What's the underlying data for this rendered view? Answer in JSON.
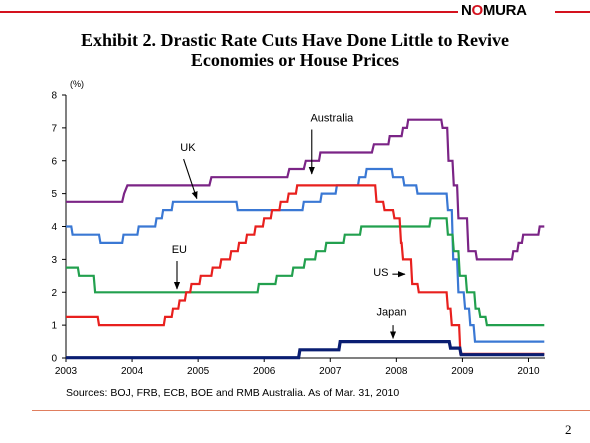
{
  "brand": {
    "logo_left": "N",
    "logo_o": "O",
    "logo_right": "MURA",
    "accent_color": "#d4121e"
  },
  "title_line1": "Exhibit 2.  Drastic Rate Cuts Have Done Little to Revive",
  "title_line2": "Economies or House Prices",
  "source": "Sources: BOJ, FRB, ECB, BOE and RMB Australia. As of  Mar. 31, 2010",
  "page_number": "2",
  "chart_data": {
    "type": "line",
    "step": true,
    "y_unit_label": "(%)",
    "xlim": [
      2003.0,
      2010.25
    ],
    "ylim": [
      0,
      8
    ],
    "x_ticks": [
      2003,
      2004,
      2005,
      2006,
      2007,
      2008,
      2009,
      2010
    ],
    "y_ticks": [
      0,
      1,
      2,
      3,
      4,
      5,
      6,
      7,
      8
    ],
    "grid": false,
    "series": [
      {
        "name": "Australia",
        "color": "#7b2486",
        "points": [
          [
            2003.0,
            4.75
          ],
          [
            2003.85,
            4.75
          ],
          [
            2003.88,
            5.0
          ],
          [
            2003.93,
            5.25
          ],
          [
            2005.17,
            5.25
          ],
          [
            2005.2,
            5.5
          ],
          [
            2006.35,
            5.5
          ],
          [
            2006.38,
            5.75
          ],
          [
            2006.6,
            5.75
          ],
          [
            2006.63,
            6.0
          ],
          [
            2006.83,
            6.0
          ],
          [
            2006.85,
            6.25
          ],
          [
            2007.63,
            6.25
          ],
          [
            2007.66,
            6.5
          ],
          [
            2007.88,
            6.5
          ],
          [
            2007.9,
            6.75
          ],
          [
            2008.08,
            6.75
          ],
          [
            2008.1,
            7.0
          ],
          [
            2008.16,
            7.0
          ],
          [
            2008.18,
            7.25
          ],
          [
            2008.68,
            7.25
          ],
          [
            2008.7,
            7.0
          ],
          [
            2008.77,
            7.0
          ],
          [
            2008.79,
            6.0
          ],
          [
            2008.85,
            6.0
          ],
          [
            2008.87,
            5.25
          ],
          [
            2008.92,
            5.25
          ],
          [
            2008.94,
            4.25
          ],
          [
            2009.07,
            4.25
          ],
          [
            2009.09,
            3.25
          ],
          [
            2009.2,
            3.25
          ],
          [
            2009.22,
            3.0
          ],
          [
            2009.75,
            3.0
          ],
          [
            2009.77,
            3.25
          ],
          [
            2009.83,
            3.25
          ],
          [
            2009.85,
            3.5
          ],
          [
            2009.9,
            3.5
          ],
          [
            2009.92,
            3.75
          ],
          [
            2010.15,
            3.75
          ],
          [
            2010.17,
            4.0
          ],
          [
            2010.24,
            4.0
          ]
        ]
      },
      {
        "name": "UK",
        "color": "#3a78d4",
        "points": [
          [
            2003.0,
            4.0
          ],
          [
            2003.08,
            4.0
          ],
          [
            2003.1,
            3.75
          ],
          [
            2003.5,
            3.75
          ],
          [
            2003.52,
            3.5
          ],
          [
            2003.85,
            3.5
          ],
          [
            2003.87,
            3.75
          ],
          [
            2004.08,
            3.75
          ],
          [
            2004.1,
            4.0
          ],
          [
            2004.35,
            4.0
          ],
          [
            2004.37,
            4.25
          ],
          [
            2004.45,
            4.25
          ],
          [
            2004.47,
            4.5
          ],
          [
            2004.6,
            4.5
          ],
          [
            2004.62,
            4.75
          ],
          [
            2005.58,
            4.75
          ],
          [
            2005.6,
            4.5
          ],
          [
            2006.58,
            4.5
          ],
          [
            2006.6,
            4.75
          ],
          [
            2006.85,
            4.75
          ],
          [
            2006.87,
            5.0
          ],
          [
            2007.08,
            5.0
          ],
          [
            2007.1,
            5.25
          ],
          [
            2007.42,
            5.25
          ],
          [
            2007.44,
            5.5
          ],
          [
            2007.53,
            5.5
          ],
          [
            2007.55,
            5.75
          ],
          [
            2007.93,
            5.75
          ],
          [
            2007.95,
            5.5
          ],
          [
            2008.1,
            5.5
          ],
          [
            2008.12,
            5.25
          ],
          [
            2008.3,
            5.25
          ],
          [
            2008.32,
            5.0
          ],
          [
            2008.76,
            5.0
          ],
          [
            2008.78,
            4.5
          ],
          [
            2008.84,
            4.5
          ],
          [
            2008.86,
            3.0
          ],
          [
            2008.92,
            3.0
          ],
          [
            2008.94,
            2.0
          ],
          [
            2009.02,
            2.0
          ],
          [
            2009.04,
            1.5
          ],
          [
            2009.1,
            1.5
          ],
          [
            2009.12,
            1.0
          ],
          [
            2009.17,
            1.0
          ],
          [
            2009.19,
            0.5
          ],
          [
            2010.24,
            0.5
          ]
        ]
      },
      {
        "name": "EU",
        "color": "#22a04e",
        "points": [
          [
            2003.0,
            2.75
          ],
          [
            2003.18,
            2.75
          ],
          [
            2003.2,
            2.5
          ],
          [
            2003.42,
            2.5
          ],
          [
            2003.44,
            2.0
          ],
          [
            2005.9,
            2.0
          ],
          [
            2005.92,
            2.25
          ],
          [
            2006.17,
            2.25
          ],
          [
            2006.19,
            2.5
          ],
          [
            2006.42,
            2.5
          ],
          [
            2006.44,
            2.75
          ],
          [
            2006.6,
            2.75
          ],
          [
            2006.62,
            3.0
          ],
          [
            2006.77,
            3.0
          ],
          [
            2006.79,
            3.25
          ],
          [
            2006.92,
            3.25
          ],
          [
            2006.94,
            3.5
          ],
          [
            2007.2,
            3.5
          ],
          [
            2007.22,
            3.75
          ],
          [
            2007.45,
            3.75
          ],
          [
            2007.47,
            4.0
          ],
          [
            2008.5,
            4.0
          ],
          [
            2008.52,
            4.25
          ],
          [
            2008.76,
            4.25
          ],
          [
            2008.78,
            3.75
          ],
          [
            2008.85,
            3.75
          ],
          [
            2008.87,
            3.25
          ],
          [
            2008.94,
            3.25
          ],
          [
            2008.96,
            2.5
          ],
          [
            2009.05,
            2.5
          ],
          [
            2009.07,
            2.0
          ],
          [
            2009.18,
            2.0
          ],
          [
            2009.2,
            1.5
          ],
          [
            2009.25,
            1.5
          ],
          [
            2009.27,
            1.25
          ],
          [
            2009.35,
            1.25
          ],
          [
            2009.37,
            1.0
          ],
          [
            2010.24,
            1.0
          ]
        ]
      },
      {
        "name": "US",
        "color": "#e8201e",
        "points": [
          [
            2003.0,
            1.25
          ],
          [
            2003.48,
            1.25
          ],
          [
            2003.5,
            1.0
          ],
          [
            2004.48,
            1.0
          ],
          [
            2004.5,
            1.25
          ],
          [
            2004.6,
            1.25
          ],
          [
            2004.62,
            1.5
          ],
          [
            2004.7,
            1.5
          ],
          [
            2004.72,
            1.75
          ],
          [
            2004.8,
            1.75
          ],
          [
            2004.82,
            2.0
          ],
          [
            2004.88,
            2.0
          ],
          [
            2004.9,
            2.25
          ],
          [
            2005.02,
            2.25
          ],
          [
            2005.04,
            2.5
          ],
          [
            2005.2,
            2.5
          ],
          [
            2005.22,
            2.75
          ],
          [
            2005.33,
            2.75
          ],
          [
            2005.35,
            3.0
          ],
          [
            2005.48,
            3.0
          ],
          [
            2005.5,
            3.25
          ],
          [
            2005.6,
            3.25
          ],
          [
            2005.62,
            3.5
          ],
          [
            2005.72,
            3.5
          ],
          [
            2005.74,
            3.75
          ],
          [
            2005.85,
            3.75
          ],
          [
            2005.87,
            4.0
          ],
          [
            2005.98,
            4.0
          ],
          [
            2006.0,
            4.25
          ],
          [
            2006.1,
            4.25
          ],
          [
            2006.12,
            4.5
          ],
          [
            2006.23,
            4.5
          ],
          [
            2006.25,
            4.75
          ],
          [
            2006.35,
            4.75
          ],
          [
            2006.37,
            5.0
          ],
          [
            2006.48,
            5.0
          ],
          [
            2006.5,
            5.25
          ],
          [
            2007.68,
            5.25
          ],
          [
            2007.7,
            4.75
          ],
          [
            2007.8,
            4.75
          ],
          [
            2007.82,
            4.5
          ],
          [
            2007.95,
            4.5
          ],
          [
            2007.97,
            4.25
          ],
          [
            2008.05,
            4.25
          ],
          [
            2008.07,
            3.5
          ],
          [
            2008.08,
            3.5
          ],
          [
            2008.1,
            3.0
          ],
          [
            2008.22,
            3.0
          ],
          [
            2008.24,
            2.25
          ],
          [
            2008.32,
            2.25
          ],
          [
            2008.34,
            2.0
          ],
          [
            2008.76,
            2.0
          ],
          [
            2008.78,
            1.5
          ],
          [
            2008.82,
            1.5
          ],
          [
            2008.84,
            1.0
          ],
          [
            2008.95,
            1.0
          ],
          [
            2008.97,
            0.125
          ],
          [
            2010.24,
            0.125
          ]
        ]
      },
      {
        "name": "Japan",
        "color": "#0a1e72",
        "points": [
          [
            2003.0,
            0.01
          ],
          [
            2006.52,
            0.01
          ],
          [
            2006.54,
            0.25
          ],
          [
            2007.13,
            0.25
          ],
          [
            2007.15,
            0.5
          ],
          [
            2008.8,
            0.5
          ],
          [
            2008.82,
            0.3
          ],
          [
            2008.96,
            0.3
          ],
          [
            2008.98,
            0.1
          ],
          [
            2010.24,
            0.1
          ]
        ]
      }
    ],
    "annotations": [
      {
        "label": "Australia",
        "text_x": 2006.7,
        "text_y": 7.2,
        "arrow_from": [
          2006.72,
          6.95
        ],
        "arrow_to": [
          2006.72,
          5.6
        ]
      },
      {
        "label": "UK",
        "text_x": 2004.73,
        "text_y": 6.3,
        "arrow_from": [
          2004.78,
          6.05
        ],
        "arrow_to": [
          2004.98,
          4.85
        ]
      },
      {
        "label": "EU",
        "text_x": 2004.6,
        "text_y": 3.2,
        "arrow_from": [
          2004.68,
          2.95
        ],
        "arrow_to": [
          2004.68,
          2.1
        ]
      },
      {
        "label": "US",
        "text_x": 2007.65,
        "text_y": 2.5,
        "arrow_from": [
          2007.94,
          2.55
        ],
        "arrow_to": [
          2008.13,
          2.55
        ]
      },
      {
        "label": "Japan",
        "text_x": 2007.7,
        "text_y": 1.3,
        "arrow_from": [
          2007.95,
          1.0
        ],
        "arrow_to": [
          2007.95,
          0.6
        ]
      }
    ]
  }
}
